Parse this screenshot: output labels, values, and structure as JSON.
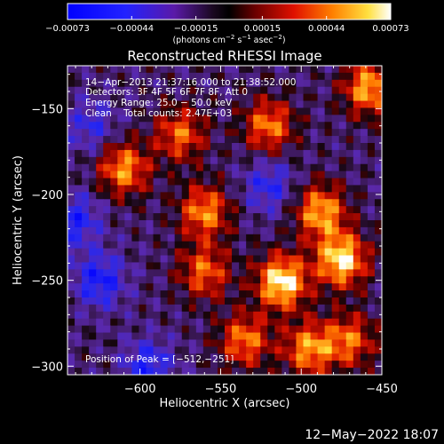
{
  "chart_data": {
    "type": "heatmap",
    "title": "Reconstructed RHESSI Image",
    "xlabel": "Heliocentric X (arcsec)",
    "ylabel": "Heliocentric Y (arcsec)",
    "xlim": [
      -645,
      -450
    ],
    "ylim": [
      -305,
      -125
    ],
    "x_ticks": [
      -600,
      -550,
      -500,
      -450
    ],
    "y_ticks": [
      -150,
      -200,
      -250,
      -300
    ],
    "x_tick_labels": [
      "−600",
      "−550",
      "−500",
      "−450"
    ],
    "y_tick_labels": [
      "−150",
      "−200",
      "−250",
      "−300"
    ],
    "colormap": "hot-blue",
    "colorbar": {
      "range": [
        -0.00073,
        0.00073
      ],
      "tick_values": [
        -0.00073,
        -0.00044,
        -0.00015,
        0.00015,
        0.00044,
        0.00073
      ],
      "tick_labels": [
        "−0.00073",
        "−0.00044",
        "−0.00015",
        "0.00015",
        "0.00044",
        "0.00073"
      ],
      "units_prefix": "(photons cm",
      "units_exp1": "−2",
      "units_mid1": " s",
      "units_exp2": "−1",
      "units_mid2": " asec",
      "units_exp3": "−2",
      "units_suffix": ")"
    },
    "annotations": {
      "time_range": "14−Apr−2013 21:37:16.000 to 21:38:52.000",
      "detectors": "Detectors: 3F 4F 5F 6F 7F 8F, Att 0",
      "energy": "Energy Range: 25.0 − 50.0 keV",
      "clean": "Clean    Total counts: 2.47E+03",
      "peak": "Position of Peak = [−512,−251]"
    },
    "peak": [
      -512,
      -251
    ],
    "bright_regions": [
      {
        "x": -512,
        "y": -251,
        "value": 0.00073
      },
      {
        "x": -475,
        "y": -238,
        "value": 0.0007
      },
      {
        "x": -488,
        "y": -210,
        "value": 0.00055
      },
      {
        "x": -560,
        "y": -210,
        "value": 0.00048
      },
      {
        "x": -610,
        "y": -185,
        "value": 0.0005
      },
      {
        "x": -520,
        "y": -160,
        "value": 0.00045
      },
      {
        "x": -458,
        "y": -138,
        "value": 0.00055
      },
      {
        "x": -495,
        "y": -290,
        "value": 0.0005
      },
      {
        "x": -535,
        "y": -285,
        "value": 0.00045
      },
      {
        "x": -470,
        "y": -285,
        "value": 0.0004
      },
      {
        "x": -560,
        "y": -245,
        "value": 0.0004
      },
      {
        "x": -575,
        "y": -165,
        "value": 0.0004
      }
    ],
    "dim_regions": [
      {
        "x": -625,
        "y": -250,
        "value": -0.00045
      },
      {
        "x": -640,
        "y": -215,
        "value": -0.0004
      },
      {
        "x": -595,
        "y": -300,
        "value": -0.0004
      },
      {
        "x": -520,
        "y": -195,
        "value": -0.00035
      },
      {
        "x": -630,
        "y": -160,
        "value": -0.0003
      }
    ]
  },
  "footer": {
    "timestamp": "12−May−2022 18:07"
  }
}
